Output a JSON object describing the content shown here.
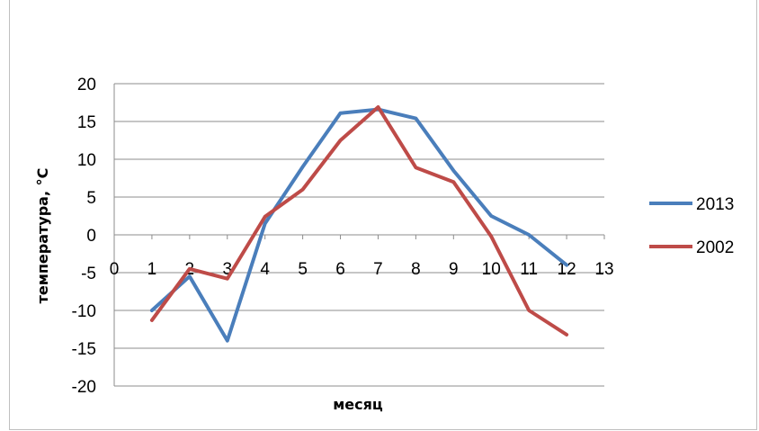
{
  "chart_data": {
    "type": "line",
    "title": "",
    "xlabel": "месяц",
    "ylabel": "температура, °C",
    "xlim": [
      0,
      13
    ],
    "ylim": [
      -20,
      20
    ],
    "x_ticks": [
      "0",
      "1",
      "2",
      "3",
      "4",
      "5",
      "6",
      "7",
      "8",
      "9",
      "10",
      "11",
      "12",
      "13"
    ],
    "y_ticks": [
      "20",
      "15",
      "10",
      "5",
      "0",
      "-5",
      "-10",
      "-15",
      "-20"
    ],
    "grid": true,
    "legend_position": "right",
    "series": [
      {
        "name": "2013",
        "color": "#4a7ebb",
        "x": [
          1,
          2,
          3,
          4,
          5,
          6,
          7,
          8,
          9,
          10,
          11,
          12
        ],
        "y": [
          -10,
          -5.5,
          -14,
          1.5,
          9,
          16.1,
          16.6,
          15.4,
          8.5,
          2.5,
          0,
          -4
        ]
      },
      {
        "name": "2002",
        "color": "#be4b48",
        "x": [
          1,
          2,
          3,
          4,
          5,
          6,
          7,
          8,
          9,
          10,
          11,
          12
        ],
        "y": [
          -11.3,
          -4.5,
          -5.8,
          2.4,
          6,
          12.5,
          16.9,
          8.9,
          7,
          -0.2,
          -10,
          -13.2
        ]
      }
    ]
  }
}
